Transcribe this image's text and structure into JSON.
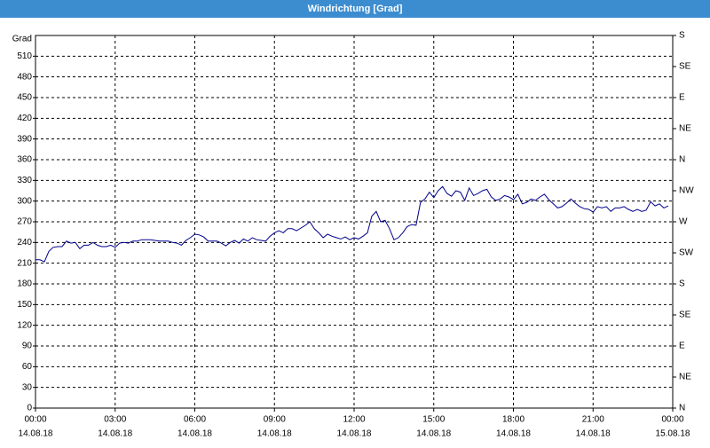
{
  "chart_data": {
    "type": "line",
    "title": "Windrichtung [Grad]",
    "y_label": "Grad",
    "x": [
      0,
      10,
      20,
      30,
      40,
      50,
      60,
      70,
      80,
      90,
      100,
      110,
      120,
      130,
      140,
      150,
      160,
      170,
      180,
      190,
      200,
      210,
      220,
      230,
      240,
      250,
      260,
      270,
      280,
      290,
      300,
      310,
      320,
      330,
      340,
      350,
      360,
      370,
      380,
      390,
      400,
      410,
      420,
      430,
      440,
      450,
      460,
      470,
      480,
      490,
      500,
      510,
      520,
      530,
      540,
      550,
      560,
      570,
      580,
      590,
      600,
      610,
      620,
      630,
      640,
      650,
      660,
      670,
      680,
      690,
      700,
      710,
      720,
      730,
      740,
      750,
      760,
      770,
      780,
      790,
      800,
      810,
      820,
      830,
      840,
      850,
      860,
      870,
      880,
      890,
      900,
      910,
      920,
      930,
      940,
      950,
      960,
      970,
      980,
      990,
      1000,
      1010,
      1020,
      1030,
      1040,
      1050,
      1060,
      1070,
      1080,
      1090,
      1100,
      1110,
      1120,
      1130,
      1140,
      1150,
      1160,
      1170,
      1180,
      1190,
      1200,
      1210,
      1220,
      1230,
      1240,
      1250,
      1260,
      1270,
      1280,
      1290,
      1300,
      1310,
      1320,
      1330,
      1340,
      1350,
      1360,
      1370,
      1380,
      1390,
      1400,
      1410,
      1420,
      1430
    ],
    "values": [
      215,
      215,
      212,
      227,
      233,
      234,
      234,
      242,
      239,
      240,
      231,
      236,
      236,
      240,
      236,
      234,
      234,
      236,
      233,
      239,
      240,
      239,
      242,
      242,
      244,
      244,
      244,
      243,
      242,
      242,
      242,
      240,
      239,
      236,
      243,
      247,
      252,
      251,
      248,
      242,
      242,
      242,
      239,
      235,
      240,
      243,
      239,
      245,
      242,
      247,
      244,
      243,
      242,
      249,
      254,
      257,
      254,
      260,
      260,
      257,
      261,
      265,
      270,
      260,
      254,
      247,
      252,
      249,
      247,
      245,
      248,
      244,
      247,
      245,
      249,
      254,
      278,
      285,
      270,
      272,
      260,
      244,
      247,
      254,
      263,
      266,
      265,
      298,
      303,
      313,
      305,
      315,
      321,
      311,
      307,
      315,
      313,
      301,
      319,
      308,
      311,
      315,
      317,
      306,
      301,
      303,
      308,
      306,
      302,
      310,
      296,
      298,
      303,
      301,
      306,
      310,
      302,
      296,
      290,
      292,
      297,
      303,
      297,
      292,
      289,
      288,
      284,
      292,
      290,
      292,
      285,
      290,
      290,
      292,
      288,
      285,
      288,
      285,
      287,
      299,
      293,
      296,
      290,
      293
    ],
    "color": "#00008b",
    "xlim": [
      0,
      1440
    ],
    "xticks": [
      {
        "value": 0,
        "label": "00:00"
      },
      {
        "value": 180,
        "label": "03:00"
      },
      {
        "value": 360,
        "label": "06:00"
      },
      {
        "value": 540,
        "label": "09:00"
      },
      {
        "value": 720,
        "label": "12:00"
      },
      {
        "value": 900,
        "label": "15:00"
      },
      {
        "value": 1080,
        "label": "18:00"
      },
      {
        "value": 1260,
        "label": "21:00"
      },
      {
        "value": 1440,
        "label": "00:00"
      }
    ],
    "xtick_dates": [
      "14.08.18",
      "14.08.18",
      "14.08.18",
      "14.08.18",
      "14.08.18",
      "14.08.18",
      "14.08.18",
      "14.08.18",
      "15.08.18"
    ],
    "ylim": [
      0,
      540
    ],
    "yticks": [
      0,
      30,
      60,
      90,
      120,
      150,
      180,
      210,
      240,
      270,
      300,
      330,
      360,
      390,
      420,
      450,
      480,
      510
    ],
    "y2lim": [
      0,
      540
    ],
    "y2ticks": [
      {
        "value": 0,
        "label": "N"
      },
      {
        "value": 45,
        "label": "NE"
      },
      {
        "value": 90,
        "label": "E"
      },
      {
        "value": 135,
        "label": "SE"
      },
      {
        "value": 180,
        "label": "S"
      },
      {
        "value": 225,
        "label": "SW"
      },
      {
        "value": 270,
        "label": "W"
      },
      {
        "value": 315,
        "label": "NW"
      },
      {
        "value": 360,
        "label": "N"
      },
      {
        "value": 405,
        "label": "NE"
      },
      {
        "value": 450,
        "label": "E"
      },
      {
        "value": 495,
        "label": "SE"
      },
      {
        "value": 540,
        "label": "S"
      }
    ],
    "grid": true
  }
}
